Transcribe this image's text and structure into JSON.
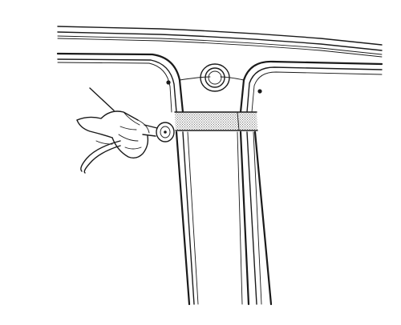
{
  "illustration": {
    "subject": "",
    "colors": {
      "stroke": "#1a1a1a",
      "background": "#ffffff",
      "tape_fill": "#8a8a8a"
    },
    "icons": [
      "hand-icon",
      "sanding-disc-icon",
      "air-hose-icon"
    ]
  }
}
